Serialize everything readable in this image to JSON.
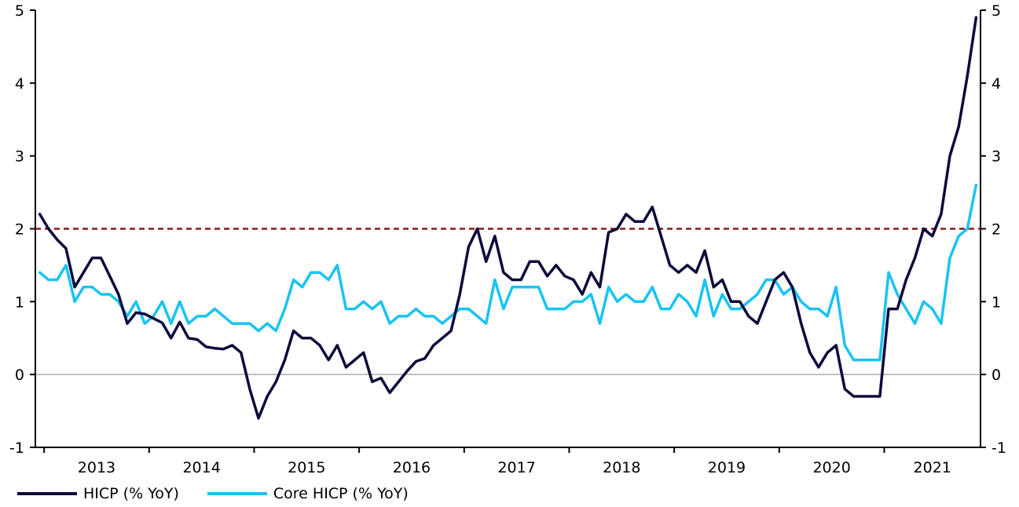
{
  "chart_data": {
    "type": "line",
    "y_ticks": [
      "-1",
      "0",
      "1",
      "2",
      "3",
      "4",
      "5"
    ],
    "ylim": [
      -1,
      5
    ],
    "x_start": "2012-12",
    "x_end": "2021-11",
    "x_tick_labels": [
      "2013",
      "2014",
      "2015",
      "2016",
      "2017",
      "2018",
      "2019",
      "2020",
      "2021"
    ],
    "reference_line": {
      "value": 2,
      "style": "dashed",
      "color": "#8b1a1a"
    },
    "zero_line": {
      "value": 0,
      "color": "#808080"
    },
    "series": [
      {
        "name": "HICP (% YoY)",
        "color": "#0b0b3b",
        "values": [
          2.2,
          2.0,
          1.85,
          1.73,
          1.2,
          1.4,
          1.6,
          1.6,
          1.35,
          1.1,
          0.7,
          0.85,
          0.83,
          0.77,
          0.71,
          0.5,
          0.72,
          0.5,
          0.48,
          0.38,
          0.36,
          0.35,
          0.4,
          0.3,
          -0.2,
          -0.6,
          -0.3,
          -0.1,
          0.2,
          0.6,
          0.5,
          0.5,
          0.4,
          0.2,
          0.4,
          0.1,
          0.2,
          0.3,
          -0.1,
          -0.05,
          -0.25,
          -0.1,
          0.05,
          0.18,
          0.22,
          0.4,
          0.5,
          0.6,
          1.1,
          1.75,
          2.0,
          1.55,
          1.9,
          1.4,
          1.3,
          1.3,
          1.55,
          1.55,
          1.35,
          1.5,
          1.35,
          1.3,
          1.1,
          1.4,
          1.2,
          1.95,
          2.0,
          2.2,
          2.1,
          2.1,
          2.3,
          1.9,
          1.5,
          1.4,
          1.5,
          1.4,
          1.7,
          1.2,
          1.3,
          1.0,
          1.0,
          0.8,
          0.7,
          1.0,
          1.3,
          1.4,
          1.2,
          0.7,
          0.3,
          0.1,
          0.3,
          0.4,
          -0.2,
          -0.3,
          -0.3,
          -0.3,
          -0.3,
          0.9,
          0.9,
          1.3,
          1.6,
          2.0,
          1.9,
          2.2,
          3.0,
          3.4,
          4.1,
          4.9
        ]
      },
      {
        "name": "Core HICP (% YoY)",
        "color": "#19c3f3",
        "values": [
          1.4,
          1.3,
          1.3,
          1.5,
          1.0,
          1.2,
          1.2,
          1.1,
          1.1,
          1.0,
          0.8,
          1.0,
          0.7,
          0.8,
          1.0,
          0.7,
          1.0,
          0.7,
          0.8,
          0.8,
          0.9,
          0.8,
          0.7,
          0.7,
          0.7,
          0.6,
          0.7,
          0.6,
          0.9,
          1.3,
          1.2,
          1.4,
          1.4,
          1.3,
          1.5,
          0.9,
          0.9,
          1.0,
          0.9,
          1.0,
          0.7,
          0.8,
          0.8,
          0.9,
          0.8,
          0.8,
          0.7,
          0.8,
          0.9,
          0.9,
          0.8,
          0.7,
          1.3,
          0.9,
          1.2,
          1.2,
          1.2,
          1.2,
          0.9,
          0.9,
          0.9,
          1.0,
          1.0,
          1.1,
          0.7,
          1.2,
          1.0,
          1.1,
          1.0,
          1.0,
          1.2,
          0.9,
          0.9,
          1.1,
          1.0,
          0.8,
          1.3,
          0.8,
          1.1,
          0.9,
          0.9,
          1.0,
          1.1,
          1.3,
          1.3,
          1.1,
          1.2,
          1.0,
          0.9,
          0.9,
          0.8,
          1.2,
          0.4,
          0.2,
          0.2,
          0.2,
          0.2,
          1.4,
          1.1,
          0.9,
          0.7,
          1.0,
          0.9,
          0.7,
          1.6,
          1.9,
          2.0,
          2.6
        ]
      }
    ],
    "legend_position": "bottom-left",
    "grid": false
  }
}
